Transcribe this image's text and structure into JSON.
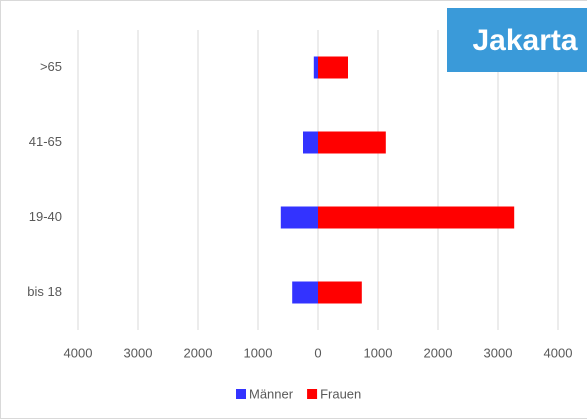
{
  "chart_data": {
    "type": "bar",
    "orientation": "horizontal",
    "title": "Jakarta",
    "categories": [
      ">65",
      "41-65",
      "19-40",
      "bis 18"
    ],
    "series": [
      {
        "name": "Männer",
        "color": "#3333ff",
        "values": [
          -70,
          -250,
          -620,
          -430
        ]
      },
      {
        "name": "Frauen",
        "color": "#ff0000",
        "values": [
          500,
          1130,
          3270,
          730
        ]
      }
    ],
    "xlim": [
      -4000,
      4000
    ],
    "xticks": [
      {
        "value": -4000,
        "label": "4000"
      },
      {
        "value": -3000,
        "label": "3000"
      },
      {
        "value": -2000,
        "label": "2000"
      },
      {
        "value": -1000,
        "label": "1000"
      },
      0,
      1000,
      2000,
      3000,
      4000
    ],
    "grid": true,
    "legend": "bottom"
  }
}
